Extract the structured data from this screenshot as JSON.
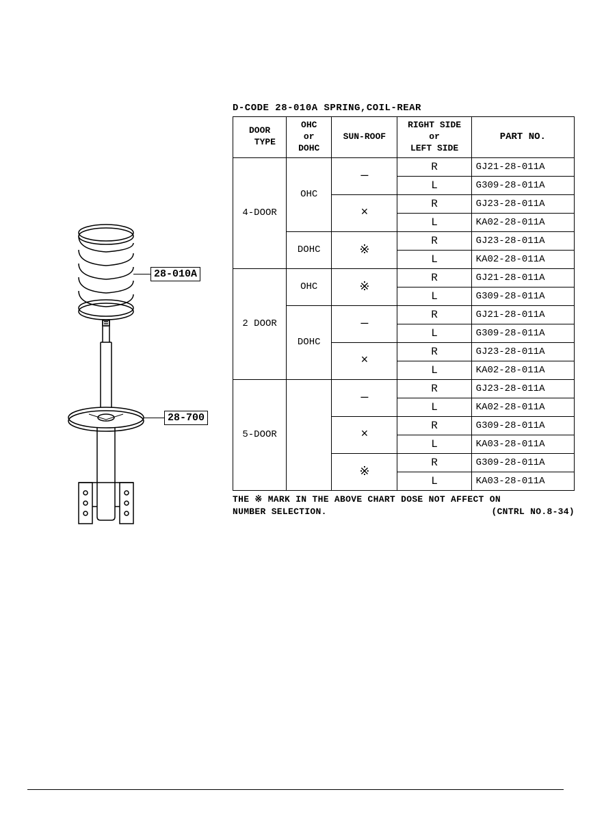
{
  "table_title": "D-CODE 28-010A  SPRING,COIL-REAR",
  "headers": {
    "door_type": "DOOR\n  TYPE",
    "ohc": "OHC\nor\nDOHC",
    "sunroof": "SUN-ROOF",
    "side": "RIGHT SIDE\nor\nLEFT SIDE",
    "part_no": "PART NO."
  },
  "callouts": {
    "spring": "28-010A",
    "seat": "28-700"
  },
  "rows": [
    {
      "door": "4-DOOR",
      "door_span": 6,
      "ohc": "OHC",
      "ohc_span": 4,
      "sun": "—",
      "sun_span": 2,
      "side": "R",
      "part": "GJ21-28-011A"
    },
    {
      "side": "L",
      "part": "G309-28-011A"
    },
    {
      "sun": "×",
      "sun_span": 2,
      "side": "R",
      "part": "GJ23-28-011A"
    },
    {
      "side": "L",
      "part": "KA02-28-011A"
    },
    {
      "ohc": "DOHC",
      "ohc_span": 2,
      "sun": "※",
      "sun_span": 2,
      "side": "R",
      "part": "GJ23-28-011A"
    },
    {
      "side": "L",
      "part": "KA02-28-011A"
    },
    {
      "door": "2 DOOR",
      "door_span": 6,
      "ohc": "OHC",
      "ohc_span": 2,
      "sun": "※",
      "sun_span": 2,
      "side": "R",
      "part": "GJ21-28-011A"
    },
    {
      "side": "L",
      "part": "G309-28-011A"
    },
    {
      "ohc": "DOHC",
      "ohc_span": 4,
      "sun": "—",
      "sun_span": 2,
      "side": "R",
      "part": "GJ21-28-011A"
    },
    {
      "side": "L",
      "part": "G309-28-011A"
    },
    {
      "sun": "×",
      "sun_span": 2,
      "side": "R",
      "part": "GJ23-28-011A"
    },
    {
      "side": "L",
      "part": "KA02-28-011A"
    },
    {
      "door": "5-DOOR",
      "door_span": 6,
      "sun": "—",
      "sun_span": 2,
      "side": "R",
      "part": "GJ23-28-011A"
    },
    {
      "side": "L",
      "part": "KA02-28-011A"
    },
    {
      "sun": "×",
      "sun_span": 2,
      "side": "R",
      "part": "G309-28-011A"
    },
    {
      "side": "L",
      "part": "KA03-28-011A"
    },
    {
      "sun": "※",
      "sun_span": 2,
      "side": "R",
      "part": "G309-28-011A"
    },
    {
      "side": "L",
      "part": "KA03-28-011A"
    }
  ],
  "footnote_left": "THE ※ MARK IN THE ABOVE CHART DOSE NOT AFFECT ON\nNUMBER SELECTION.",
  "footnote_right": "(CNTRL NO.8-34)"
}
